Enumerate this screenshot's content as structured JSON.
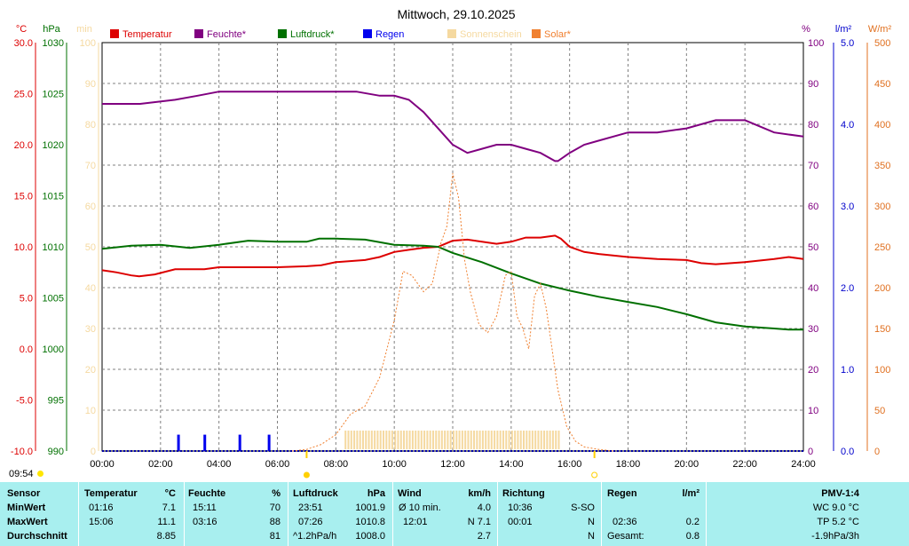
{
  "title": "Mittwoch, 29.10.2025",
  "corner_time": "09:54",
  "colors": {
    "temperature": "#dd0000",
    "humidity": "#800080",
    "pressure": "#007000",
    "rain": "#0000ee",
    "sunshine": "#f5d9a0",
    "solar": "#f08030",
    "temp_axis": "#dd0000",
    "pressure_axis": "#007000",
    "min_axis": "#f5d9a0",
    "pct_axis": "#800080",
    "rain_axis": "#0000cc",
    "solar_axis": "#e07020",
    "table_bg": "#a8efef",
    "grid": "#808080"
  },
  "chart_data": {
    "type": "line",
    "title": "Mittwoch, 29.10.2025",
    "grid": true,
    "legend_position": "top",
    "x_label_hours": [
      "00:00",
      "02:00",
      "04:00",
      "06:00",
      "08:00",
      "10:00",
      "12:00",
      "14:00",
      "16:00",
      "18:00",
      "20:00",
      "22:00",
      "24:00"
    ],
    "xlim_hours": [
      0,
      24
    ],
    "axes": {
      "temperature": {
        "unit": "°C",
        "range": [
          -10,
          30
        ],
        "ticks": [
          "30.0",
          "25.0",
          "20.0",
          "15.0",
          "10.0",
          "5.0",
          "0.0",
          "-5.0",
          "-10.0"
        ]
      },
      "pressure": {
        "unit": "hPa",
        "range": [
          990,
          1030
        ],
        "ticks": [
          "1030",
          "1025",
          "1020",
          "1015",
          "1010",
          "1005",
          "1000",
          "995",
          "990"
        ]
      },
      "minutes": {
        "unit": "min",
        "range": [
          0,
          100
        ],
        "ticks": [
          "100",
          "90",
          "80",
          "70",
          "60",
          "50",
          "40",
          "30",
          "20",
          "10",
          "0"
        ]
      },
      "humidity": {
        "unit": "%",
        "range": [
          0,
          100
        ],
        "ticks": [
          "100",
          "90",
          "80",
          "70",
          "60",
          "50",
          "40",
          "30",
          "20",
          "10",
          "0"
        ]
      },
      "rain": {
        "unit": "l/m²",
        "range": [
          0,
          5
        ],
        "ticks": [
          "5.0",
          "4.0",
          "3.0",
          "2.0",
          "1.0",
          "0.0"
        ]
      },
      "solar": {
        "unit": "W/m²",
        "range": [
          0,
          500
        ],
        "ticks": [
          "500",
          "450",
          "400",
          "350",
          "300",
          "250",
          "200",
          "150",
          "100",
          "50",
          "0"
        ]
      }
    },
    "legend": [
      "Temperatur",
      "Feuchte*",
      "Luftdruck*",
      "Regen",
      "Sonnenschein",
      "Solar*"
    ],
    "series": [
      {
        "name": "Temperatur",
        "axis": "temperature",
        "x": [
          0,
          0.5,
          1.0,
          1.27,
          1.8,
          2.5,
          3.5,
          4.0,
          5.0,
          6.0,
          7.0,
          7.5,
          8.0,
          9.0,
          9.5,
          10.0,
          10.5,
          11.0,
          11.5,
          12.0,
          12.5,
          13.0,
          13.5,
          14.0,
          14.5,
          15.0,
          15.5,
          15.7,
          16.0,
          16.5,
          17.0,
          18.0,
          19.0,
          20.0,
          20.5,
          21.0,
          22.0,
          23.0,
          23.5,
          24.0
        ],
        "y": [
          7.7,
          7.5,
          7.2,
          7.1,
          7.3,
          7.8,
          7.8,
          8.0,
          8.0,
          8.0,
          8.1,
          8.2,
          8.5,
          8.7,
          9.0,
          9.5,
          9.7,
          9.9,
          10.0,
          10.6,
          10.7,
          10.5,
          10.3,
          10.5,
          10.9,
          10.9,
          11.1,
          10.8,
          10.0,
          9.5,
          9.3,
          9.0,
          8.8,
          8.7,
          8.4,
          8.3,
          8.5,
          8.8,
          9.0,
          8.8
        ]
      },
      {
        "name": "Feuchte*",
        "axis": "humidity",
        "x": [
          0,
          1.3,
          2.5,
          3.27,
          4.0,
          5.0,
          6.0,
          7.0,
          8.0,
          8.7,
          9.5,
          10.0,
          10.5,
          11.0,
          11.5,
          12.0,
          12.5,
          13.0,
          13.5,
          14.0,
          14.5,
          15.0,
          15.5,
          15.6,
          16.0,
          16.5,
          17.0,
          18.0,
          19.0,
          20.0,
          20.5,
          21.0,
          21.5,
          22.0,
          23.0,
          24.0
        ],
        "y": [
          85,
          85,
          86,
          87,
          88,
          88,
          88,
          88,
          88,
          88,
          87,
          87,
          86,
          83,
          79,
          75,
          73,
          74,
          75,
          75,
          74,
          73,
          71,
          71,
          73,
          75,
          76,
          78,
          78,
          79,
          80,
          81,
          81,
          81,
          78,
          77
        ]
      },
      {
        "name": "Luftdruck*",
        "axis": "pressure",
        "x": [
          0,
          1.0,
          2.0,
          3.0,
          4.0,
          5.0,
          6.0,
          7.0,
          7.43,
          8.0,
          9.0,
          10.0,
          11.0,
          11.5,
          12.0,
          13.0,
          14.0,
          15.0,
          16.0,
          17.0,
          18.0,
          19.0,
          20.0,
          21.0,
          22.0,
          23.0,
          23.5,
          24.0
        ],
        "y": [
          1009.8,
          1010.1,
          1010.2,
          1009.9,
          1010.2,
          1010.6,
          1010.5,
          1010.5,
          1010.8,
          1010.8,
          1010.7,
          1010.2,
          1010.1,
          1010.0,
          1009.4,
          1008.5,
          1007.4,
          1006.4,
          1005.7,
          1005.1,
          1004.6,
          1004.1,
          1003.4,
          1002.6,
          1002.2,
          1002.0,
          1001.9,
          1001.9
        ]
      },
      {
        "name": "Solar*",
        "axis": "solar",
        "x": [
          6.5,
          7.0,
          7.5,
          8.0,
          8.5,
          9.0,
          9.5,
          10.0,
          10.3,
          10.6,
          11.0,
          11.3,
          11.6,
          11.8,
          12.0,
          12.2,
          12.4,
          12.6,
          12.9,
          13.2,
          13.5,
          13.8,
          14.0,
          14.2,
          14.4,
          14.6,
          14.8,
          15.0,
          15.2,
          15.4,
          15.6,
          15.9,
          16.2,
          16.5,
          17.0,
          17.5
        ],
        "y": [
          0,
          2,
          8,
          20,
          45,
          55,
          90,
          160,
          220,
          215,
          195,
          205,
          255,
          275,
          340,
          310,
          235,
          195,
          155,
          145,
          165,
          215,
          220,
          165,
          150,
          125,
          190,
          205,
          175,
          125,
          75,
          30,
          12,
          5,
          2,
          0
        ]
      }
    ],
    "rain_bars": {
      "axis": "rain",
      "x": [
        2.6,
        3.5,
        4.7,
        5.7
      ],
      "y": [
        0.2,
        0.2,
        0.2,
        0.2
      ]
    },
    "sunshine_minutes": {
      "axis": "minutes",
      "start": 8.3,
      "end": 15.6,
      "value": 2
    },
    "markers": {
      "sunrise": 7.0,
      "sunset": 16.85,
      "moon": 7.0
    }
  },
  "table": {
    "row_labels": [
      "Sensor",
      "MinWert",
      "MaxWert",
      "Durchschnitt"
    ],
    "temp": {
      "header": "Temperatur",
      "unit": "°C",
      "min_time": "01:16",
      "min_val": "7.1",
      "max_time": "15:06",
      "max_val": "11.1",
      "avg": "8.85"
    },
    "hum": {
      "header": "Feuchte",
      "unit": "%",
      "min_time": "15:11",
      "min_val": "70",
      "max_time": "03:16",
      "max_val": "88",
      "avg": "81"
    },
    "press": {
      "header": "Luftdruck",
      "unit": "hPa",
      "min_time": "23:51",
      "min_val": "1001.9",
      "max_time": "07:26",
      "max_val": "1010.8",
      "trend": "^1.2hPa/h",
      "avg": "1008.0"
    },
    "wind": {
      "header": "Wind",
      "unit": "km/h",
      "avg_label": "Ø 10 min.",
      "avg_val": "4.0",
      "max_time": "12:01",
      "max_val": "N 7.1",
      "avg": "2.7"
    },
    "dir": {
      "header": "Richtung",
      "r1_time": "10:36",
      "r1_val": "S-SO",
      "r2_time": "00:01",
      "r2_val": "N",
      "r3_val": "N"
    },
    "rain": {
      "header": "Regen",
      "unit": "l/m²",
      "r2_time": "02:36",
      "r2_val": "0.2",
      "total_label": "Gesamt:",
      "total_val": "0.8"
    },
    "pmv": {
      "header": "PMV-1:4",
      "wc": "WC 9.0 °C",
      "tp": "TP 5.2 °C",
      "trend": "-1.9hPa/3h"
    }
  }
}
